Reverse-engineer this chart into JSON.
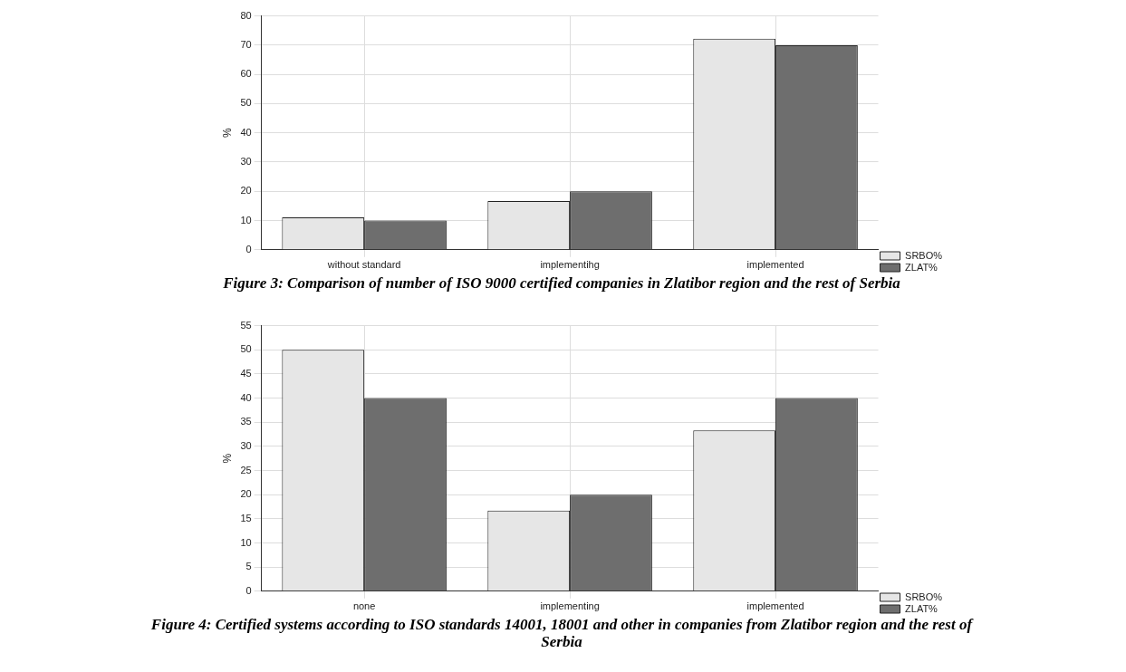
{
  "chart_data": [
    {
      "type": "bar",
      "title": "Figure 3: Comparison of number of ISO 9000 certified companies in Zlatibor region and the rest of Serbia",
      "ylabel": "%",
      "categories": [
        "without standard",
        "implementihg",
        "implemented"
      ],
      "series": [
        {
          "name": "SRBO%",
          "color": "#e6e6e6",
          "values": [
            11.1,
            16.7,
            72.2
          ]
        },
        {
          "name": "ZLAT%",
          "color": "#6e6e6e",
          "values": [
            10,
            20,
            70
          ]
        }
      ],
      "ylim": [
        0,
        80
      ],
      "yticks": [
        0,
        10,
        20,
        30,
        40,
        50,
        60,
        70,
        80
      ],
      "grid": true,
      "legend": "bottom right"
    },
    {
      "type": "bar",
      "title": "Figure 4: Certified systems according to ISO standards 14001, 18001 and other in companies from Zlatibor region and the rest of Serbia",
      "ylabel": "%",
      "categories": [
        "none",
        "implementing",
        "implemented"
      ],
      "series": [
        {
          "name": "SRBO%",
          "color": "#e6e6e6",
          "values": [
            50,
            16.7,
            33.3
          ]
        },
        {
          "name": "ZLAT%",
          "color": "#6e6e6e",
          "values": [
            40,
            20,
            40
          ]
        }
      ],
      "ylim": [
        0,
        55
      ],
      "yticks": [
        0,
        5,
        10,
        15,
        20,
        25,
        30,
        35,
        40,
        45,
        50,
        55
      ],
      "grid": true,
      "legend": "bottom right"
    }
  ]
}
